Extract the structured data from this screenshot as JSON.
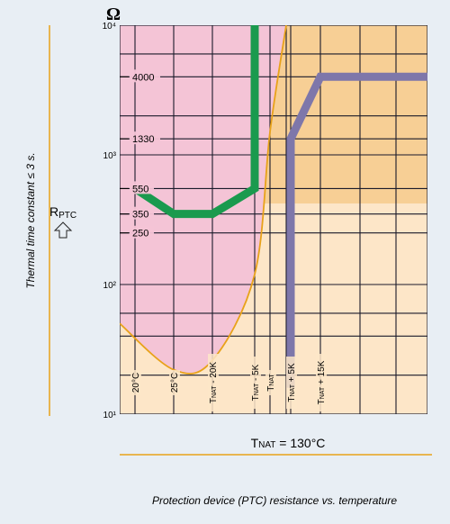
{
  "chart_data": {
    "type": "line",
    "title": "",
    "caption": "Protection device (PTC) resistance vs. temperature",
    "y_unit": "Ω",
    "y_axis_label_main": "R",
    "y_axis_label_sub": "PTC",
    "side_note": "Thermal time constant ≤ 3 s.",
    "x_note": "TNAT = 130°C",
    "x_note_parts": {
      "prefix": "T",
      "sub": "NAT",
      "suffix": " = 130°C"
    },
    "y_scale": "log",
    "ylim": [
      10,
      10000
    ],
    "y_decade_ticks": [
      {
        "value": 10,
        "label": "10¹"
      },
      {
        "value": 100,
        "label": "10²"
      },
      {
        "value": 1000,
        "label": "10³"
      },
      {
        "value": 10000,
        "label": "10⁴"
      }
    ],
    "y_value_ticks": [
      {
        "value": 4000,
        "label": "4000"
      },
      {
        "value": 1330,
        "label": "1330"
      },
      {
        "value": 550,
        "label": "550"
      },
      {
        "value": 350,
        "label": "350"
      },
      {
        "value": 250,
        "label": "250"
      }
    ],
    "x_ticks": [
      {
        "key": "t20",
        "label": "20°C"
      },
      {
        "key": "t25",
        "label": "25°C"
      },
      {
        "key": "tm20",
        "label": "TNAT - 20K",
        "prefix": "T",
        "sub": "NAT",
        "suffix": " - 20K"
      },
      {
        "key": "tm5",
        "label": "TNAT - 5K",
        "prefix": "T",
        "sub": "NAT",
        "suffix": " - 5K"
      },
      {
        "key": "tn",
        "label": "TNAT",
        "prefix": "T",
        "sub": "NAT",
        "suffix": ""
      },
      {
        "key": "tp5",
        "label": "TNAT + 5K",
        "prefix": "T",
        "sub": "NAT",
        "suffix": " + 5K"
      },
      {
        "key": "tp15",
        "label": "TNAT + 15K",
        "prefix": "T",
        "sub": "NAT",
        "suffix": " + 15K"
      }
    ],
    "series": [
      {
        "key": "green",
        "color": "#1a9a4e",
        "points": [
          [
            "t20",
            550
          ],
          [
            "t25",
            350
          ],
          [
            "tm20",
            350
          ],
          [
            "tm5",
            550
          ],
          [
            "tm5",
            10000
          ]
        ]
      },
      {
        "key": "purple",
        "color": "#7e77aa",
        "points": [
          [
            "tp5",
            16
          ],
          [
            "tp5",
            1330
          ],
          [
            "tp15",
            4000
          ],
          [
            "end",
            4000
          ]
        ]
      },
      {
        "key": "orange",
        "color": "#e8a21a",
        "points": [
          [
            "start",
            50
          ],
          [
            "t25",
            22
          ],
          [
            "tm20",
            26
          ],
          [
            "tm5",
            120
          ],
          [
            "tn",
            1500
          ],
          [
            "tn_plus",
            10000
          ]
        ]
      }
    ],
    "colors": {
      "background": "#e8eef4",
      "pink_region": "#f4c4d6",
      "orange_region": "#f7cf95",
      "light_orange_region": "#fde6c8",
      "grid": "#1a1a2a",
      "frame_line": "#e8a21a"
    },
    "grid": true
  }
}
